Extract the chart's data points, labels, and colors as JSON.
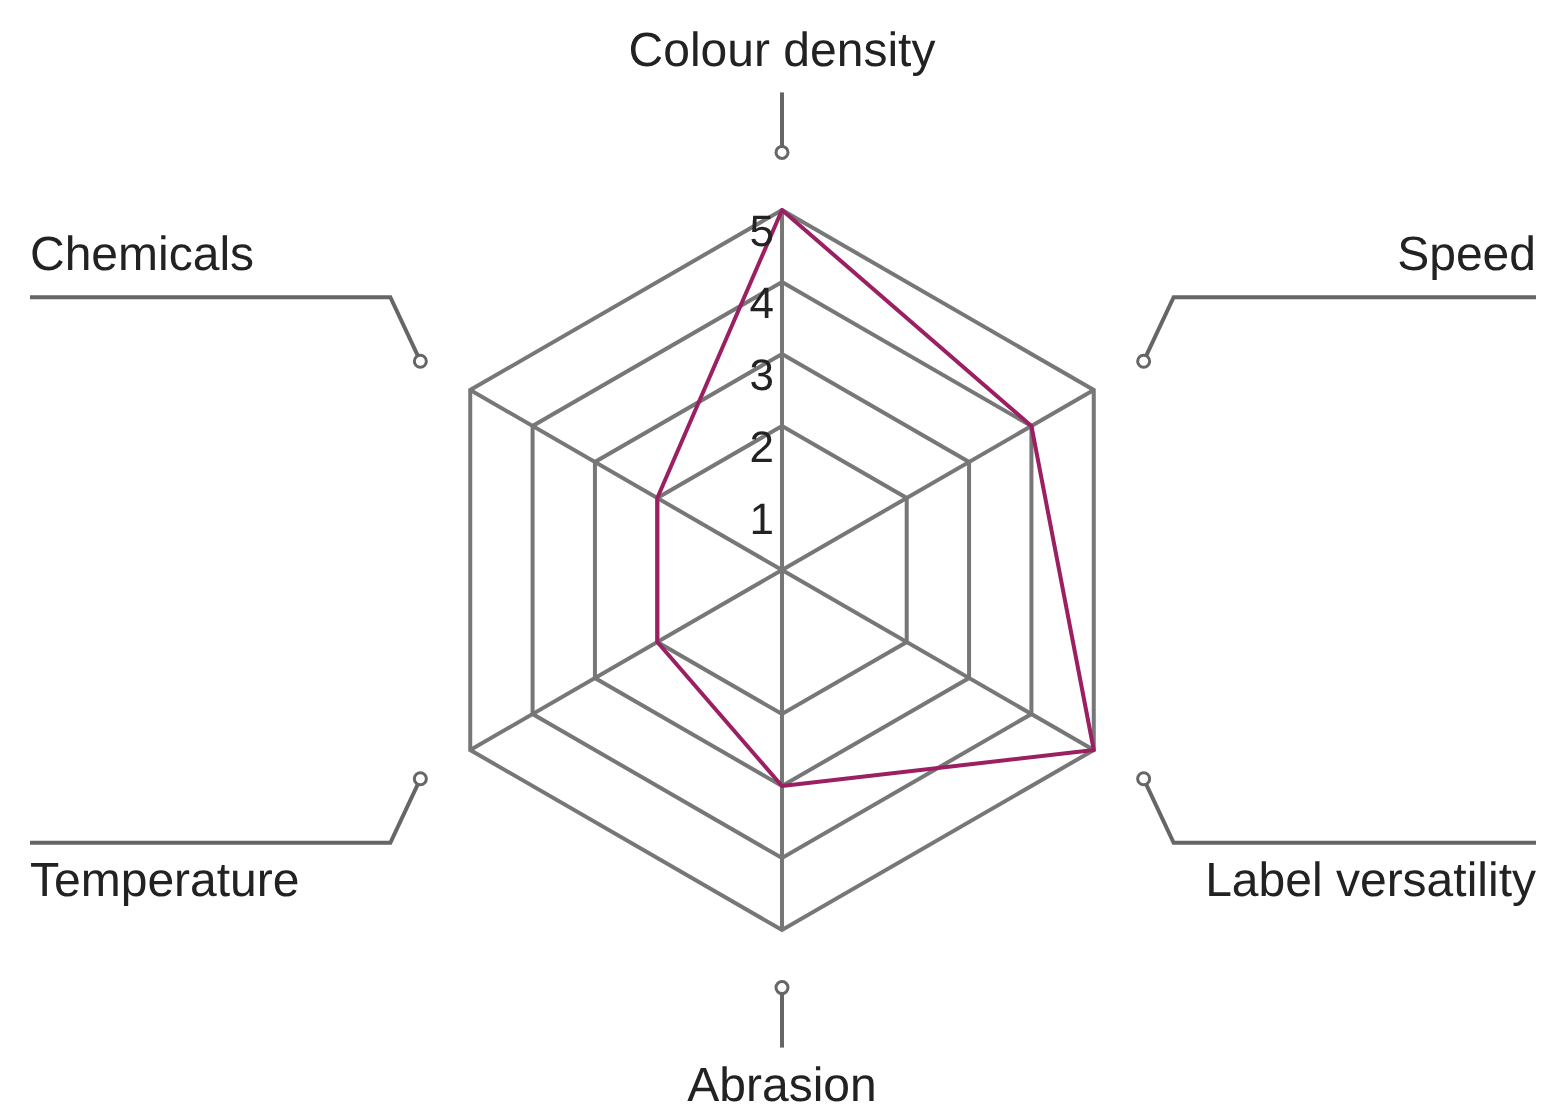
{
  "chart_data": {
    "type": "radar",
    "categories": [
      "Colour density",
      "Speed",
      "Label versatility",
      "Abrasion",
      "Temperature",
      "Chemicals"
    ],
    "series": [
      {
        "color": "#9c1f62",
        "values": [
          5,
          4,
          5,
          3,
          2,
          2
        ]
      }
    ],
    "ylim": [
      0,
      5
    ],
    "yticks": [
      1,
      2,
      3,
      4,
      5
    ],
    "grid": true,
    "legend": false,
    "marker": "none",
    "line_style": "solid"
  }
}
